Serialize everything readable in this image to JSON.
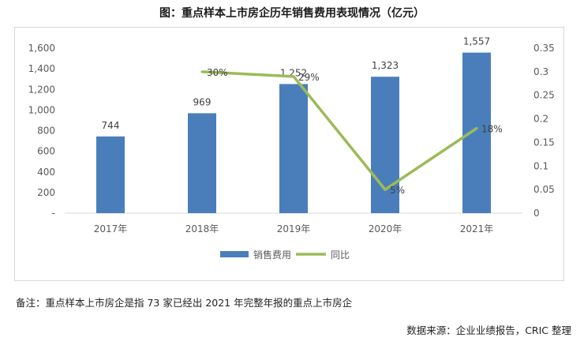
{
  "title": "图：重点样本上市房企历年销售费用表现情况（亿元）",
  "note": "备注：重点样本上市房企是指 73 家已经出 2021 年完整年报的重点上市房企",
  "source": "数据来源：企业业绩报告，CRIC 整理",
  "chart_data": {
    "type": "bar",
    "title": "图：重点样本上市房企历年销售费用表现情况（亿元）",
    "categories": [
      "2017年",
      "2018年",
      "2019年",
      "2020年",
      "2021年"
    ],
    "series": [
      {
        "name": "销售费用",
        "type": "bar",
        "axis": "left",
        "values": [
          744,
          969,
          1252,
          1323,
          1557
        ],
        "labels": [
          "744",
          "969",
          "1,252",
          "1,323",
          "1,557"
        ],
        "color": "#4a7ebb"
      },
      {
        "name": "同比",
        "type": "line",
        "axis": "right",
        "values": [
          null,
          0.3,
          0.29,
          0.05,
          0.18
        ],
        "labels": [
          "",
          "30%",
          "29%",
          "5%",
          "18%"
        ],
        "color": "#9bbb59"
      }
    ],
    "y_left": {
      "min": 0,
      "max": 1600,
      "ticks": [
        0,
        200,
        400,
        600,
        800,
        1000,
        1200,
        1400,
        1600
      ],
      "tick_labels": [
        "-",
        "200",
        "400",
        "600",
        "800",
        "1,000",
        "1,200",
        "1,400",
        "1,600"
      ]
    },
    "y_right": {
      "min": 0,
      "max": 0.35,
      "ticks": [
        0,
        0.05,
        0.1,
        0.15,
        0.2,
        0.25,
        0.3,
        0.35
      ],
      "tick_labels": [
        "0",
        "0.05",
        "0.1",
        "0.15",
        "0.2",
        "0.25",
        "0.3",
        "0.35"
      ]
    },
    "grid": false,
    "legend_position": "bottom"
  }
}
